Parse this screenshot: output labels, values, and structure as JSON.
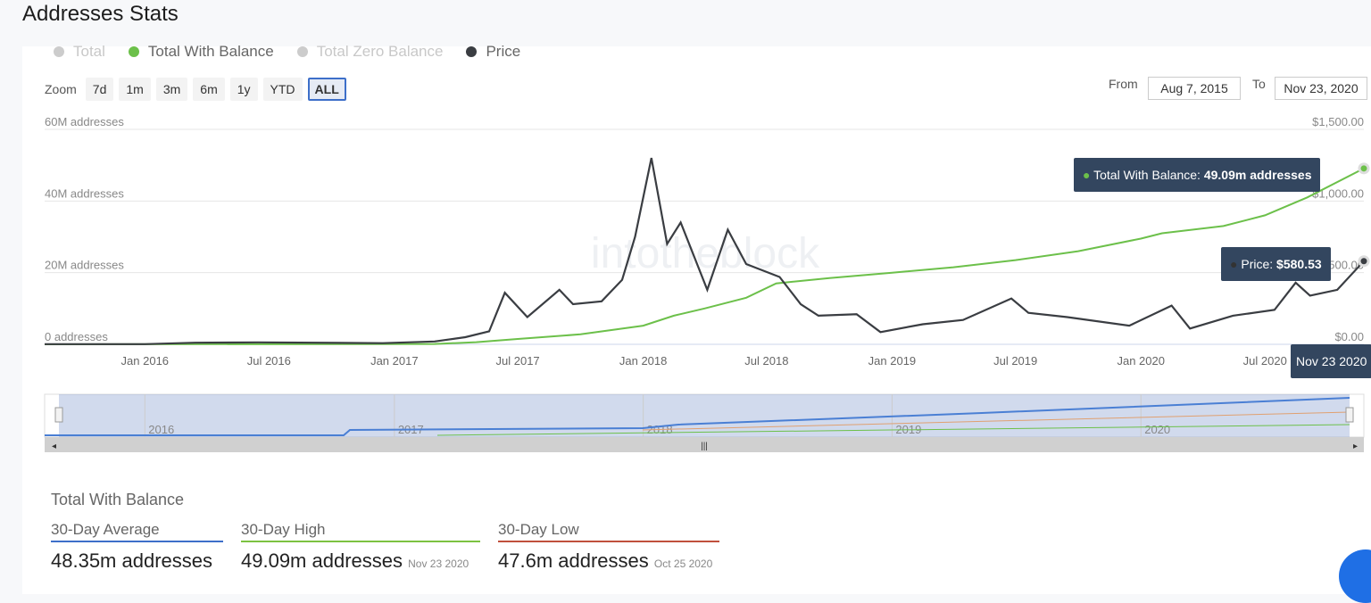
{
  "page_title": "Addresses Stats",
  "legend": [
    {
      "label": "Total",
      "color": "#cccccc",
      "active": false
    },
    {
      "label": "Total With Balance",
      "color": "#6cc04a",
      "active": true
    },
    {
      "label": "Total Zero Balance",
      "color": "#cccccc",
      "active": false
    },
    {
      "label": "Price",
      "color": "#3a3d42",
      "active": true
    }
  ],
  "zoom": {
    "label": "Zoom",
    "buttons": [
      "7d",
      "1m",
      "3m",
      "6m",
      "1y",
      "YTD",
      "ALL"
    ],
    "selected": "ALL"
  },
  "range": {
    "from_label": "From",
    "from": "Aug 7, 2015",
    "to_label": "To",
    "to": "Nov 23, 2020"
  },
  "watermark": "intotheblock",
  "tooltips": {
    "balance_label": "Total With Balance:",
    "balance_value": "49.09m addresses",
    "price_label": "Price:",
    "price_value": "$580.53",
    "date": "Nov 23 2020"
  },
  "navigator": {
    "years": [
      "2016",
      "2017",
      "2018",
      "2019",
      "2020"
    ]
  },
  "chart_data": {
    "type": "line",
    "x_range": [
      "2015-08-07",
      "2020-11-23"
    ],
    "x_ticks": [
      "Jan 2016",
      "Jul 2016",
      "Jan 2017",
      "Jul 2017",
      "Jan 2018",
      "Jul 2018",
      "Jan 2019",
      "Jul 2019",
      "Jan 2020",
      "Jul 2020"
    ],
    "y_left": {
      "ticks": [
        "0 addresses",
        "20M addresses",
        "40M addresses",
        "60M addresses"
      ],
      "range": [
        0,
        60000000
      ]
    },
    "y_right": {
      "ticks": [
        "$0.00",
        "$500.00",
        "$1,000.00",
        "$1,500.00"
      ],
      "range": [
        0,
        1500
      ]
    },
    "grid": true,
    "series": [
      {
        "name": "Total With Balance",
        "axis": "left",
        "unit": "M addresses",
        "color": "#6cc04a",
        "points": [
          [
            "2015-08-07",
            0
          ],
          [
            "2017-03-01",
            0.1
          ],
          [
            "2017-05-01",
            0.6
          ],
          [
            "2017-07-01",
            1.5
          ],
          [
            "2017-10-01",
            2.8
          ],
          [
            "2018-01-01",
            5.2
          ],
          [
            "2018-02-15",
            8
          ],
          [
            "2018-04-01",
            10
          ],
          [
            "2018-06-01",
            13
          ],
          [
            "2018-07-15",
            17
          ],
          [
            "2018-10-01",
            18.5
          ],
          [
            "2019-01-01",
            20
          ],
          [
            "2019-04-01",
            21.5
          ],
          [
            "2019-07-01",
            23.5
          ],
          [
            "2019-10-01",
            26
          ],
          [
            "2020-01-01",
            29.5
          ],
          [
            "2020-02-01",
            31
          ],
          [
            "2020-05-01",
            33
          ],
          [
            "2020-07-01",
            36
          ],
          [
            "2020-09-01",
            41
          ],
          [
            "2020-11-23",
            49.09
          ]
        ]
      },
      {
        "name": "Price",
        "axis": "right",
        "unit": "USD",
        "color": "#3a3d42",
        "points": [
          [
            "2015-08-07",
            1
          ],
          [
            "2016-01-01",
            1
          ],
          [
            "2016-03-15",
            11
          ],
          [
            "2016-06-15",
            14
          ],
          [
            "2016-12-15",
            8
          ],
          [
            "2017-03-01",
            20
          ],
          [
            "2017-04-15",
            50
          ],
          [
            "2017-05-20",
            90
          ],
          [
            "2017-06-12",
            360
          ],
          [
            "2017-07-15",
            190
          ],
          [
            "2017-08-31",
            380
          ],
          [
            "2017-09-20",
            280
          ],
          [
            "2017-11-01",
            300
          ],
          [
            "2017-12-01",
            450
          ],
          [
            "2017-12-20",
            750
          ],
          [
            "2018-01-13",
            1300
          ],
          [
            "2018-02-05",
            700
          ],
          [
            "2018-02-25",
            850
          ],
          [
            "2018-04-05",
            380
          ],
          [
            "2018-05-05",
            800
          ],
          [
            "2018-06-01",
            560
          ],
          [
            "2018-07-20",
            470
          ],
          [
            "2018-08-20",
            280
          ],
          [
            "2018-09-15",
            200
          ],
          [
            "2018-11-10",
            210
          ],
          [
            "2018-12-15",
            85
          ],
          [
            "2019-02-15",
            140
          ],
          [
            "2019-04-15",
            170
          ],
          [
            "2019-06-25",
            320
          ],
          [
            "2019-07-20",
            220
          ],
          [
            "2019-09-15",
            190
          ],
          [
            "2019-12-15",
            130
          ],
          [
            "2020-02-15",
            270
          ],
          [
            "2020-03-13",
            110
          ],
          [
            "2020-05-15",
            200
          ],
          [
            "2020-07-15",
            240
          ],
          [
            "2020-08-15",
            430
          ],
          [
            "2020-09-05",
            340
          ],
          [
            "2020-10-15",
            380
          ],
          [
            "2020-11-23",
            580.53
          ]
        ]
      }
    ]
  },
  "stats": {
    "title": "Total With Balance",
    "items": [
      {
        "label": "30-Day Average",
        "value": "48.35m addresses",
        "date": "",
        "color": "#3d6fc9"
      },
      {
        "label": "30-Day High",
        "value": "49.09m addresses",
        "date": "Nov 23 2020",
        "color": "#7cc241"
      },
      {
        "label": "30-Day Low",
        "value": "47.6m addresses",
        "date": "Oct 25 2020",
        "color": "#c0503c"
      }
    ]
  }
}
